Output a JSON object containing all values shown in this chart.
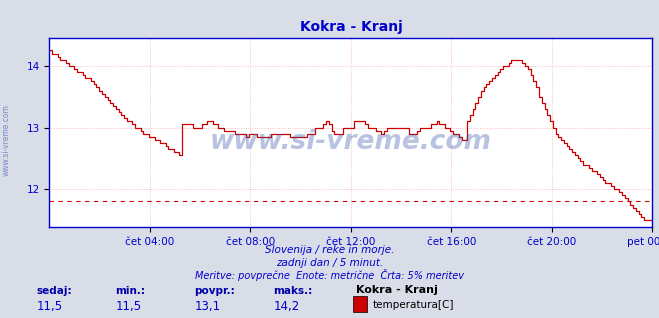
{
  "title": "Kokra - Kranj",
  "title_color": "#0000cc",
  "bg_color": "#d8dde8",
  "plot_bg_color": "#ffffff",
  "line_color": "#cc0000",
  "axis_color": "#0000cc",
  "grid_color": "#ffaaaa",
  "hline_color": "#cc0000",
  "hline_value": 11.8,
  "xmin": 0,
  "xmax": 288,
  "ymin": 11.5,
  "ymax": 14.45,
  "yticks": [
    12,
    13,
    14
  ],
  "xtick_labels": [
    "čet 04:00",
    "čet 08:00",
    "čet 12:00",
    "čet 16:00",
    "čet 20:00",
    "pet 00:00"
  ],
  "xtick_positions": [
    48,
    96,
    144,
    192,
    240,
    288
  ],
  "watermark": "www.si-vreme.com",
  "watermark_color": "#3355aa",
  "watermark_alpha": 0.35,
  "side_watermark": "www.si-vreme.com",
  "sub_text1": "Slovenija / reke in morje.",
  "sub_text2": "zadnji dan / 5 minut.",
  "sub_text3": "Meritve: povprečne  Enote: metrične  Črta: 5% meritev",
  "sub_color": "#0000cc",
  "footer_labels": [
    "sedaj:",
    "min.:",
    "povpr.:",
    "maks.:"
  ],
  "footer_values": [
    "11,5",
    "11,5",
    "13,1",
    "14,2"
  ],
  "footer_station": "Kokra - Kranj",
  "footer_legend": "temperatura[C]",
  "footer_color": "#0000cc",
  "footer_label_color": "#0000aa",
  "legend_rect_color": "#cc0000",
  "y_data": [
    14.25,
    14.2,
    14.2,
    14.15,
    14.1,
    14.1,
    14.05,
    14.0,
    14.0,
    13.95,
    13.9,
    13.9,
    13.85,
    13.8,
    13.8,
    13.75,
    13.7,
    13.65,
    13.6,
    13.55,
    13.5,
    13.45,
    13.4,
    13.35,
    13.3,
    13.25,
    13.2,
    13.15,
    13.1,
    13.1,
    13.05,
    13.0,
    13.0,
    12.95,
    12.9,
    12.9,
    12.85,
    12.85,
    12.8,
    12.8,
    12.75,
    12.75,
    12.7,
    12.65,
    12.65,
    12.6,
    12.6,
    12.55,
    13.05,
    13.05,
    13.05,
    13.05,
    13.0,
    13.0,
    13.0,
    13.05,
    13.05,
    13.1,
    13.1,
    13.05,
    13.05,
    13.0,
    13.0,
    12.95,
    12.95,
    12.95,
    12.95,
    12.9,
    12.9,
    12.9,
    12.9,
    12.85,
    12.9,
    12.9,
    12.9,
    12.85,
    12.85,
    12.85,
    12.85,
    12.85,
    12.9,
    12.9,
    12.9,
    12.9,
    12.9,
    12.9,
    12.9,
    12.85,
    12.85,
    12.85,
    12.85,
    12.85,
    12.85,
    12.9,
    12.9,
    12.9,
    13.0,
    13.0,
    13.0,
    13.05,
    13.1,
    13.05,
    12.95,
    12.9,
    12.9,
    12.9,
    13.0,
    13.0,
    13.0,
    13.0,
    13.1,
    13.1,
    13.1,
    13.1,
    13.05,
    13.0,
    13.0,
    13.0,
    12.95,
    12.95,
    12.9,
    12.95,
    13.0,
    13.0,
    13.0,
    13.0,
    13.0,
    13.0,
    13.0,
    13.0,
    12.9,
    12.9,
    12.9,
    12.95,
    13.0,
    13.0,
    13.0,
    13.0,
    13.05,
    13.05,
    13.1,
    13.05,
    13.05,
    13.0,
    13.0,
    12.95,
    12.9,
    12.9,
    12.85,
    12.8,
    12.8,
    13.1,
    13.2,
    13.3,
    13.4,
    13.5,
    13.6,
    13.65,
    13.7,
    13.75,
    13.8,
    13.85,
    13.9,
    13.95,
    14.0,
    14.0,
    14.05,
    14.1,
    14.1,
    14.1,
    14.1,
    14.05,
    14.0,
    13.95,
    13.85,
    13.75,
    13.65,
    13.5,
    13.4,
    13.3,
    13.2,
    13.1,
    13.0,
    12.9,
    12.85,
    12.8,
    12.75,
    12.7,
    12.65,
    12.6,
    12.55,
    12.5,
    12.45,
    12.4,
    12.4,
    12.35,
    12.3,
    12.3,
    12.25,
    12.2,
    12.15,
    12.1,
    12.1,
    12.05,
    12.0,
    12.0,
    11.95,
    11.9,
    11.85,
    11.8,
    11.75,
    11.7,
    11.65,
    11.6,
    11.55,
    11.5,
    11.5,
    11.5,
    11.5
  ]
}
